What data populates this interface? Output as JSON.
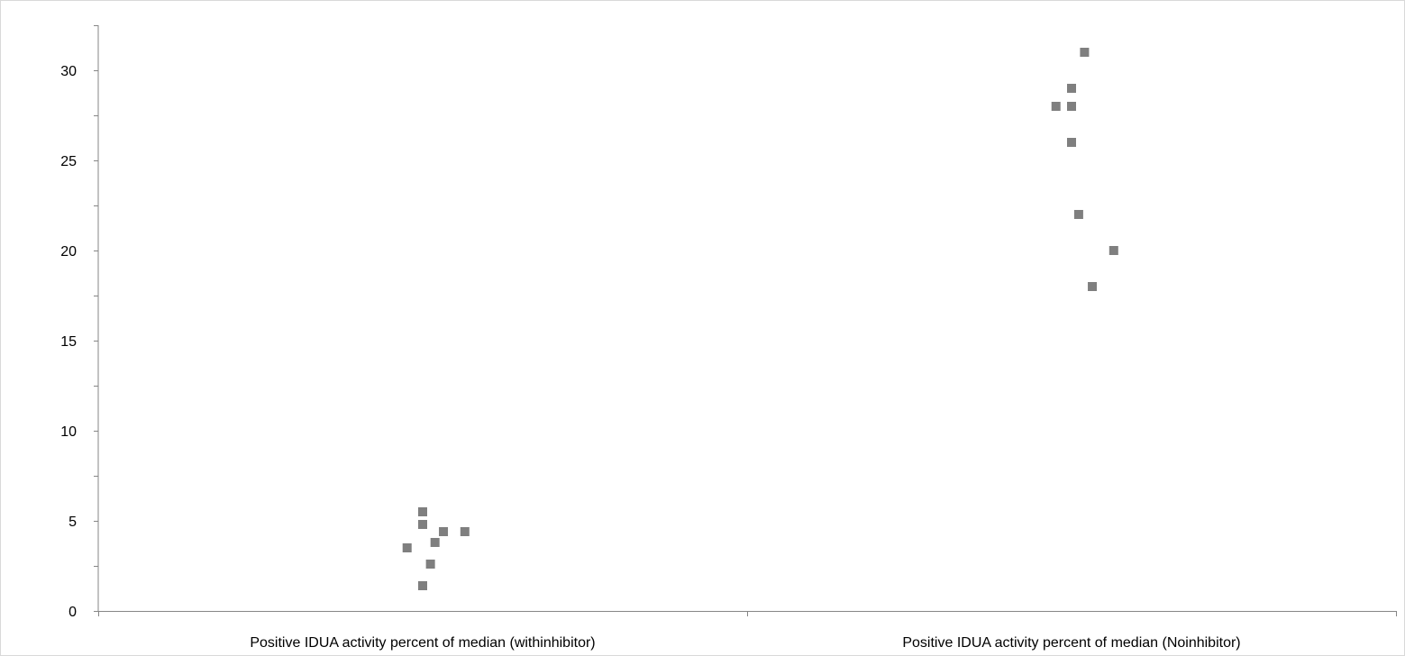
{
  "chart_data": {
    "type": "scatter",
    "title": "",
    "xlabel": "",
    "ylabel": "",
    "ylim": [
      0,
      32.5
    ],
    "yticks": [
      0,
      5,
      10,
      15,
      20,
      25,
      30
    ],
    "ytick_labels": [
      "0",
      "5",
      "10",
      "15",
      "20",
      "25",
      "30"
    ],
    "categories": [
      "Positive IDUA activity percent of median (withinhibitor)",
      "Positive IDUA activity percent of median (Noinhibitor)"
    ],
    "grid": false,
    "legend": "none",
    "marker_color": "#7f7f7f",
    "marker": "square",
    "series": [
      {
        "values": [
          5.5,
          4.8,
          4.4,
          4.4,
          3.8,
          3.5,
          2.6,
          1.4
        ],
        "jitter": [
          0.0,
          0.0,
          0.032,
          0.065,
          0.019,
          -0.024,
          0.012,
          0.0
        ]
      },
      {
        "values": [
          31,
          29,
          28,
          28,
          26,
          22,
          20,
          18
        ],
        "jitter": [
          0.02,
          0.0,
          0.0,
          -0.024,
          0.0,
          0.011,
          0.065,
          0.032
        ]
      }
    ]
  }
}
